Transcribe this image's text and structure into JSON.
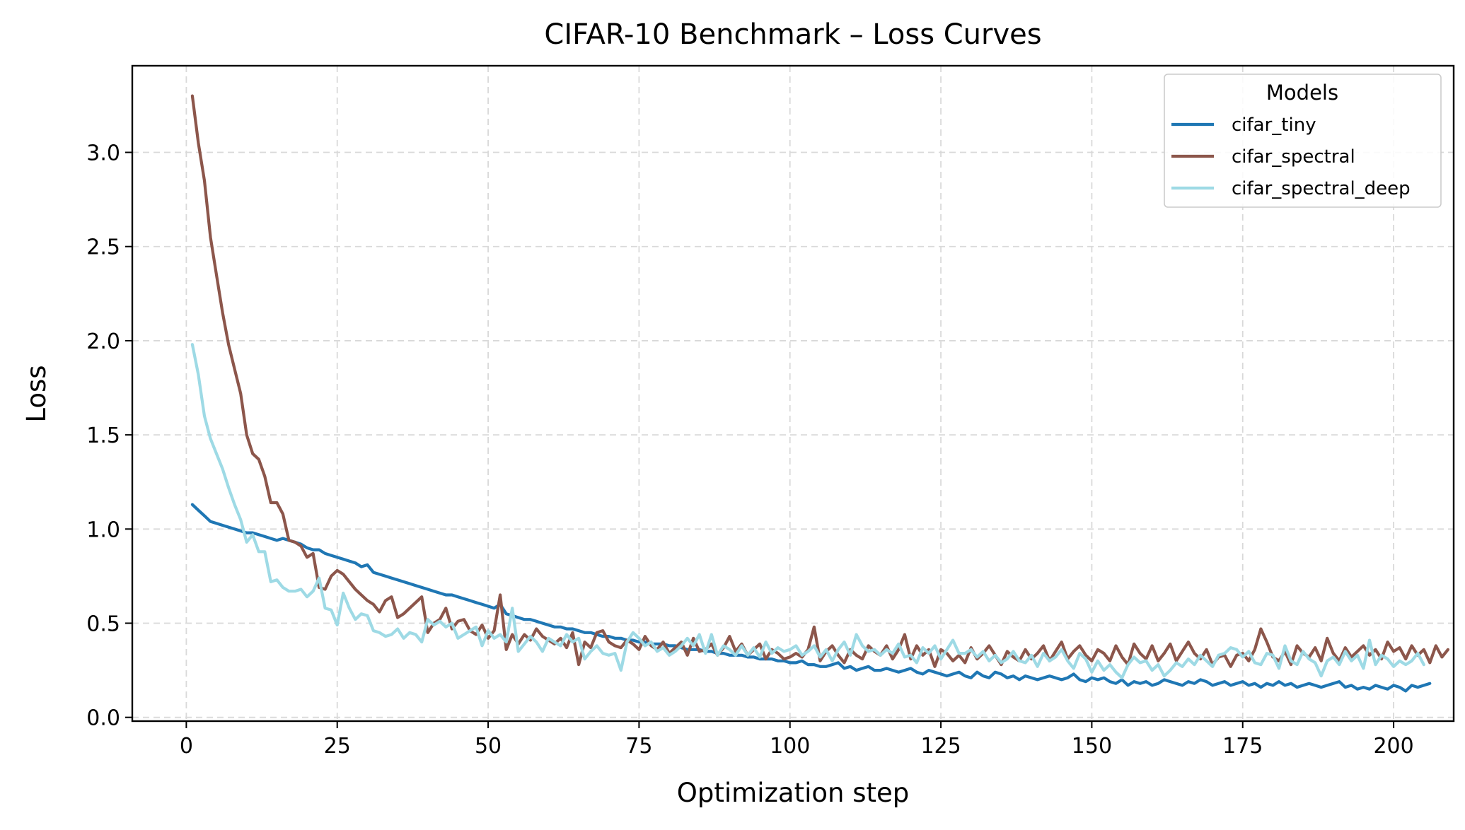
{
  "chart_data": {
    "type": "line",
    "title": "CIFAR-10 Benchmark – Loss Curves",
    "xlabel": "Optimization step",
    "ylabel": "Loss",
    "xlim": [
      -8.95,
      209.95
    ],
    "ylim": [
      -0.02,
      3.46
    ],
    "xticks": [
      0,
      25,
      50,
      75,
      100,
      125,
      150,
      175,
      200
    ],
    "xtick_labels": [
      "0",
      "25",
      "50",
      "75",
      "100",
      "125",
      "150",
      "175",
      "200"
    ],
    "yticks": [
      0.0,
      0.5,
      1.0,
      1.5,
      2.0,
      2.5,
      3.0
    ],
    "ytick_labels": [
      "0.0",
      "0.5",
      "1.0",
      "1.5",
      "2.0",
      "2.5",
      "3.0"
    ],
    "grid": true,
    "legend_title": "Models",
    "legend_position": "top-right",
    "x_start": 1,
    "x_step": 1,
    "series": [
      {
        "name": "cifar_tiny",
        "color": "#1f77b4",
        "values": [
          1.13,
          1.1,
          1.07,
          1.04,
          1.03,
          1.02,
          1.01,
          1.0,
          0.99,
          0.98,
          0.98,
          0.97,
          0.96,
          0.95,
          0.94,
          0.95,
          0.94,
          0.93,
          0.92,
          0.9,
          0.89,
          0.89,
          0.87,
          0.86,
          0.85,
          0.84,
          0.83,
          0.82,
          0.8,
          0.81,
          0.77,
          0.76,
          0.75,
          0.74,
          0.73,
          0.72,
          0.71,
          0.7,
          0.69,
          0.68,
          0.67,
          0.66,
          0.65,
          0.65,
          0.64,
          0.63,
          0.62,
          0.61,
          0.6,
          0.59,
          0.58,
          0.6,
          0.55,
          0.54,
          0.53,
          0.52,
          0.52,
          0.51,
          0.5,
          0.49,
          0.48,
          0.48,
          0.47,
          0.47,
          0.46,
          0.45,
          0.45,
          0.44,
          0.43,
          0.43,
          0.42,
          0.42,
          0.41,
          0.41,
          0.4,
          0.4,
          0.39,
          0.39,
          0.39,
          0.38,
          0.38,
          0.37,
          0.36,
          0.36,
          0.36,
          0.35,
          0.35,
          0.34,
          0.34,
          0.33,
          0.33,
          0.33,
          0.32,
          0.32,
          0.31,
          0.31,
          0.31,
          0.3,
          0.3,
          0.29,
          0.29,
          0.3,
          0.28,
          0.28,
          0.27,
          0.27,
          0.28,
          0.29,
          0.26,
          0.27,
          0.25,
          0.26,
          0.27,
          0.25,
          0.25,
          0.26,
          0.25,
          0.24,
          0.25,
          0.26,
          0.24,
          0.23,
          0.25,
          0.24,
          0.23,
          0.22,
          0.23,
          0.24,
          0.22,
          0.21,
          0.24,
          0.22,
          0.21,
          0.24,
          0.23,
          0.21,
          0.22,
          0.2,
          0.22,
          0.21,
          0.2,
          0.21,
          0.22,
          0.21,
          0.2,
          0.21,
          0.23,
          0.2,
          0.19,
          0.21,
          0.2,
          0.21,
          0.19,
          0.18,
          0.2,
          0.17,
          0.19,
          0.18,
          0.19,
          0.17,
          0.18,
          0.2,
          0.19,
          0.18,
          0.17,
          0.19,
          0.18,
          0.2,
          0.19,
          0.17,
          0.18,
          0.19,
          0.17,
          0.18,
          0.19,
          0.17,
          0.18,
          0.16,
          0.18,
          0.17,
          0.19,
          0.17,
          0.18,
          0.16,
          0.17,
          0.18,
          0.17,
          0.16,
          0.17,
          0.18,
          0.19,
          0.16,
          0.17,
          0.15,
          0.16,
          0.15,
          0.17,
          0.16,
          0.15,
          0.17,
          0.16,
          0.14,
          0.17,
          0.16,
          0.17,
          0.18
        ]
      },
      {
        "name": "cifar_spectral",
        "color": "#8c564b",
        "values": [
          3.3,
          3.05,
          2.85,
          2.55,
          2.35,
          2.15,
          1.98,
          1.85,
          1.72,
          1.5,
          1.4,
          1.37,
          1.28,
          1.14,
          1.14,
          1.08,
          0.94,
          0.93,
          0.91,
          0.85,
          0.87,
          0.69,
          0.68,
          0.75,
          0.78,
          0.76,
          0.72,
          0.68,
          0.65,
          0.62,
          0.6,
          0.56,
          0.62,
          0.64,
          0.53,
          0.55,
          0.58,
          0.61,
          0.64,
          0.45,
          0.5,
          0.52,
          0.58,
          0.47,
          0.51,
          0.52,
          0.46,
          0.44,
          0.49,
          0.42,
          0.46,
          0.65,
          0.36,
          0.44,
          0.39,
          0.44,
          0.41,
          0.47,
          0.43,
          0.41,
          0.39,
          0.42,
          0.37,
          0.45,
          0.28,
          0.4,
          0.37,
          0.45,
          0.46,
          0.4,
          0.38,
          0.37,
          0.41,
          0.39,
          0.36,
          0.43,
          0.38,
          0.36,
          0.4,
          0.34,
          0.37,
          0.4,
          0.33,
          0.42,
          0.35,
          0.36,
          0.39,
          0.33,
          0.37,
          0.43,
          0.35,
          0.39,
          0.33,
          0.36,
          0.39,
          0.31,
          0.36,
          0.34,
          0.31,
          0.32,
          0.34,
          0.32,
          0.36,
          0.48,
          0.3,
          0.35,
          0.38,
          0.33,
          0.29,
          0.36,
          0.33,
          0.31,
          0.38,
          0.35,
          0.33,
          0.38,
          0.31,
          0.36,
          0.44,
          0.31,
          0.38,
          0.33,
          0.36,
          0.27,
          0.36,
          0.34,
          0.3,
          0.33,
          0.29,
          0.37,
          0.31,
          0.34,
          0.38,
          0.33,
          0.28,
          0.35,
          0.32,
          0.3,
          0.36,
          0.31,
          0.34,
          0.38,
          0.3,
          0.35,
          0.4,
          0.31,
          0.35,
          0.38,
          0.33,
          0.3,
          0.36,
          0.34,
          0.3,
          0.38,
          0.32,
          0.28,
          0.39,
          0.34,
          0.31,
          0.38,
          0.3,
          0.34,
          0.39,
          0.3,
          0.35,
          0.4,
          0.34,
          0.31,
          0.36,
          0.28,
          0.32,
          0.33,
          0.27,
          0.33,
          0.34,
          0.3,
          0.36,
          0.47,
          0.4,
          0.32,
          0.3,
          0.35,
          0.28,
          0.38,
          0.34,
          0.32,
          0.37,
          0.3,
          0.42,
          0.34,
          0.3,
          0.37,
          0.32,
          0.35,
          0.38,
          0.33,
          0.36,
          0.31,
          0.4,
          0.35,
          0.37,
          0.31,
          0.38,
          0.33,
          0.36,
          0.29,
          0.38,
          0.32,
          0.36
        ]
      },
      {
        "name": "cifar_spectral_deep",
        "color": "#9edae5",
        "values": [
          1.98,
          1.82,
          1.6,
          1.48,
          1.4,
          1.32,
          1.22,
          1.13,
          1.05,
          0.93,
          0.97,
          0.88,
          0.88,
          0.72,
          0.73,
          0.69,
          0.67,
          0.67,
          0.68,
          0.64,
          0.67,
          0.74,
          0.58,
          0.57,
          0.49,
          0.66,
          0.58,
          0.52,
          0.55,
          0.54,
          0.46,
          0.45,
          0.43,
          0.44,
          0.47,
          0.42,
          0.45,
          0.44,
          0.4,
          0.52,
          0.49,
          0.51,
          0.48,
          0.5,
          0.42,
          0.44,
          0.46,
          0.48,
          0.38,
          0.46,
          0.42,
          0.44,
          0.4,
          0.58,
          0.35,
          0.39,
          0.43,
          0.4,
          0.35,
          0.42,
          0.4,
          0.38,
          0.44,
          0.4,
          0.42,
          0.31,
          0.35,
          0.38,
          0.34,
          0.33,
          0.34,
          0.25,
          0.4,
          0.45,
          0.42,
          0.38,
          0.4,
          0.35,
          0.37,
          0.33,
          0.35,
          0.38,
          0.42,
          0.38,
          0.44,
          0.34,
          0.44,
          0.33,
          0.38,
          0.36,
          0.33,
          0.38,
          0.33,
          0.37,
          0.32,
          0.4,
          0.34,
          0.37,
          0.35,
          0.36,
          0.38,
          0.33,
          0.35,
          0.38,
          0.32,
          0.36,
          0.3,
          0.36,
          0.4,
          0.33,
          0.44,
          0.38,
          0.35,
          0.36,
          0.33,
          0.36,
          0.34,
          0.39,
          0.32,
          0.33,
          0.29,
          0.37,
          0.34,
          0.38,
          0.31,
          0.36,
          0.41,
          0.34,
          0.34,
          0.36,
          0.32,
          0.35,
          0.3,
          0.33,
          0.29,
          0.31,
          0.35,
          0.3,
          0.29,
          0.33,
          0.27,
          0.34,
          0.3,
          0.32,
          0.36,
          0.3,
          0.26,
          0.34,
          0.31,
          0.24,
          0.3,
          0.25,
          0.28,
          0.24,
          0.21,
          0.28,
          0.32,
          0.29,
          0.3,
          0.25,
          0.28,
          0.22,
          0.25,
          0.29,
          0.27,
          0.31,
          0.28,
          0.33,
          0.3,
          0.27,
          0.33,
          0.34,
          0.37,
          0.36,
          0.32,
          0.35,
          0.29,
          0.28,
          0.34,
          0.33,
          0.26,
          0.38,
          0.3,
          0.28,
          0.35,
          0.31,
          0.29,
          0.22,
          0.3,
          0.32,
          0.28,
          0.35,
          0.3,
          0.33,
          0.26,
          0.41,
          0.28,
          0.33,
          0.31,
          0.27,
          0.3,
          0.28,
          0.3,
          0.34,
          0.28
        ]
      }
    ]
  }
}
